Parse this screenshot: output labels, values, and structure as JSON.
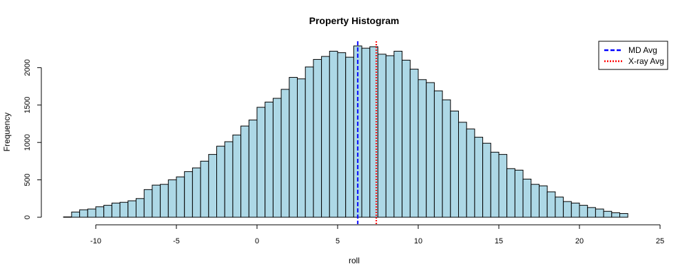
{
  "chart_data": {
    "type": "bar",
    "title": "Property Histogram",
    "xlabel": "roll",
    "ylabel": "Frequency",
    "xlim": [
      -12,
      25
    ],
    "ylim": [
      0,
      2300
    ],
    "bin_width": 0.5,
    "bin_start": -12,
    "x_ticks": [
      -10,
      -5,
      0,
      5,
      10,
      15,
      20,
      25
    ],
    "x_tick_labels": [
      "-10",
      "-5",
      "0",
      "5",
      "10",
      "15",
      "20",
      "25"
    ],
    "y_ticks": [
      0,
      500,
      1000,
      1500,
      2000
    ],
    "y_tick_labels": [
      "0",
      "500",
      "1000",
      "1500",
      "2000"
    ],
    "bar_color": "#add8e6",
    "bar_edge_color": "#000000",
    "values": [
      5,
      70,
      100,
      110,
      140,
      160,
      190,
      200,
      220,
      250,
      370,
      430,
      440,
      500,
      540,
      610,
      660,
      750,
      840,
      950,
      1010,
      1100,
      1220,
      1300,
      1470,
      1540,
      1590,
      1710,
      1870,
      1850,
      2010,
      2110,
      2150,
      2220,
      2200,
      2140,
      2290,
      2260,
      2280,
      2180,
      2160,
      2220,
      2100,
      1980,
      1840,
      1800,
      1690,
      1570,
      1420,
      1270,
      1180,
      1070,
      990,
      870,
      840,
      650,
      630,
      510,
      440,
      420,
      340,
      270,
      210,
      190,
      160,
      130,
      110,
      80,
      60,
      50
    ],
    "reference_lines": [
      {
        "name": "MD Avg",
        "x": 6.25,
        "color": "#0000ff",
        "style": "dashed"
      },
      {
        "name": "X-ray Avg",
        "x": 7.4,
        "color": "#ff0000",
        "style": "dotted"
      }
    ],
    "legend": {
      "position": "top-right",
      "entries": [
        "MD Avg",
        "X-ray Avg"
      ]
    },
    "grid": false
  }
}
